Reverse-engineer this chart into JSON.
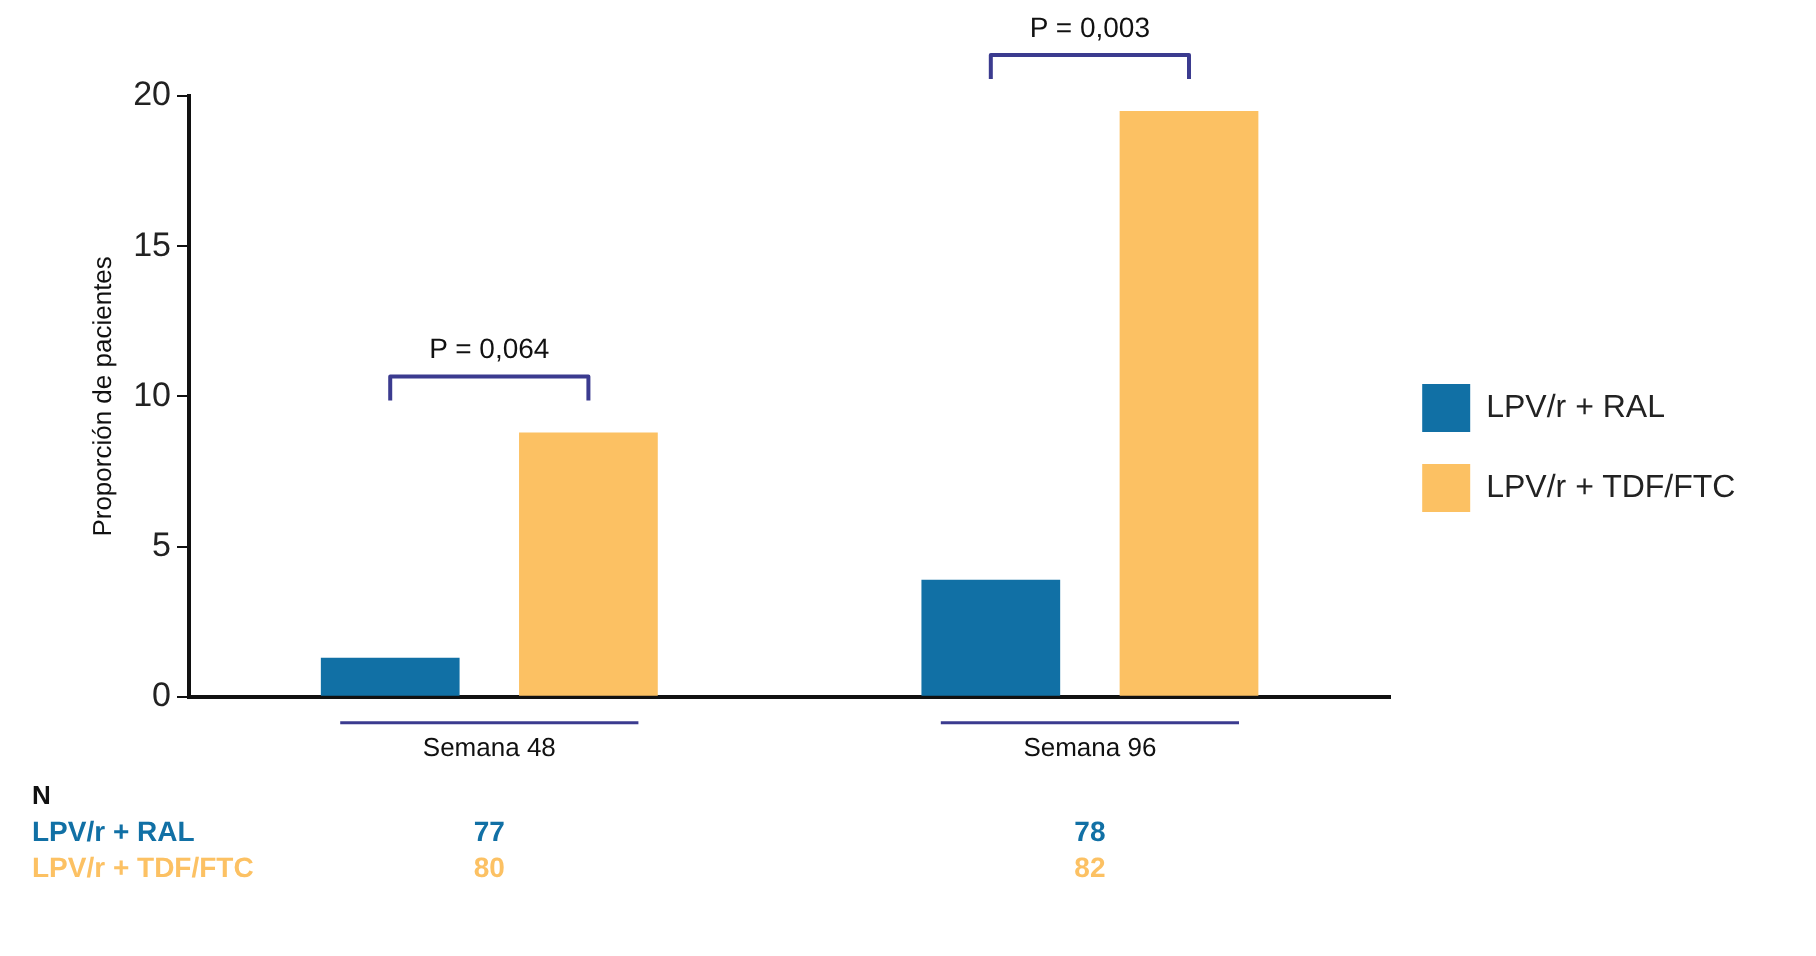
{
  "chart_data": {
    "type": "bar",
    "ylabel": "Proporción de pacientes",
    "categories": [
      "Semana 48",
      "Semana 96"
    ],
    "series": [
      {
        "name": "LPV/r + RAL",
        "color": "#1170a5",
        "values": [
          1.3,
          3.9
        ]
      },
      {
        "name": "LPV/r + TDF/FTC",
        "color": "#fcc163",
        "values": [
          8.8,
          19.5
        ]
      }
    ],
    "ylim": [
      0,
      20
    ],
    "yticks": [
      0,
      5,
      10,
      15,
      20
    ],
    "grid": false,
    "legend": "right",
    "annotations": [
      "P = 0,064",
      "P = 0,003",
      "N",
      "77",
      "78",
      "80",
      "82"
    ]
  }
}
